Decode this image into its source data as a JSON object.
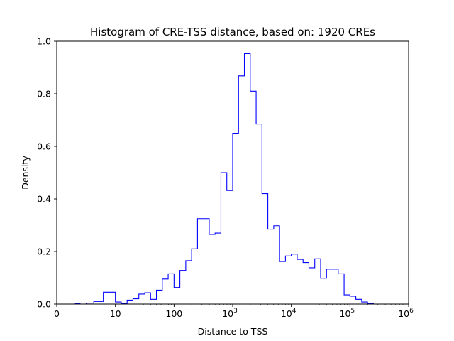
{
  "chart_data": {
    "type": "histogram",
    "title": "Histogram of CRE-TSS distance, based on: 1920 CREs",
    "xlabel": "Distance to TSS",
    "ylabel": "Density",
    "xlim": [
      0,
      1000000
    ],
    "ylim": [
      0,
      1.0
    ],
    "x_ticks": [
      {
        "value": 0,
        "base": "0",
        "exp": ""
      },
      {
        "value": 10,
        "base": "10",
        "exp": ""
      },
      {
        "value": 100,
        "base": "100",
        "exp": ""
      },
      {
        "value": 1000,
        "base": "10",
        "exp": "3"
      },
      {
        "value": 10000,
        "base": "10",
        "exp": "4"
      },
      {
        "value": 100000,
        "base": "10",
        "exp": "5"
      },
      {
        "value": 1000000,
        "base": "10",
        "exp": "6"
      }
    ],
    "y_ticks": [
      "0.0",
      "0.2",
      "0.4",
      "0.6",
      "0.8",
      "1.0"
    ],
    "legend": "none",
    "grid": false,
    "line_color": "#0000ff",
    "bins_log10_start": 0.5,
    "bins_log10_step": 0.1,
    "density": [
      0.003,
      0.0,
      0.004,
      0.01,
      0.045,
      0.008,
      0.003,
      0.015,
      0.02,
      0.038,
      0.043,
      0.018,
      0.053,
      0.095,
      0.115,
      0.063,
      0.128,
      0.165,
      0.21,
      0.325,
      0.325,
      0.265,
      0.27,
      0.5,
      0.432,
      0.65,
      0.868,
      0.953,
      0.81,
      0.685,
      0.42,
      0.285,
      0.298,
      0.162,
      0.183,
      0.19,
      0.17,
      0.158,
      0.138,
      0.172,
      0.098,
      0.133,
      0.133,
      0.115,
      0.035,
      0.03,
      0.018,
      0.008,
      0.003
    ]
  }
}
